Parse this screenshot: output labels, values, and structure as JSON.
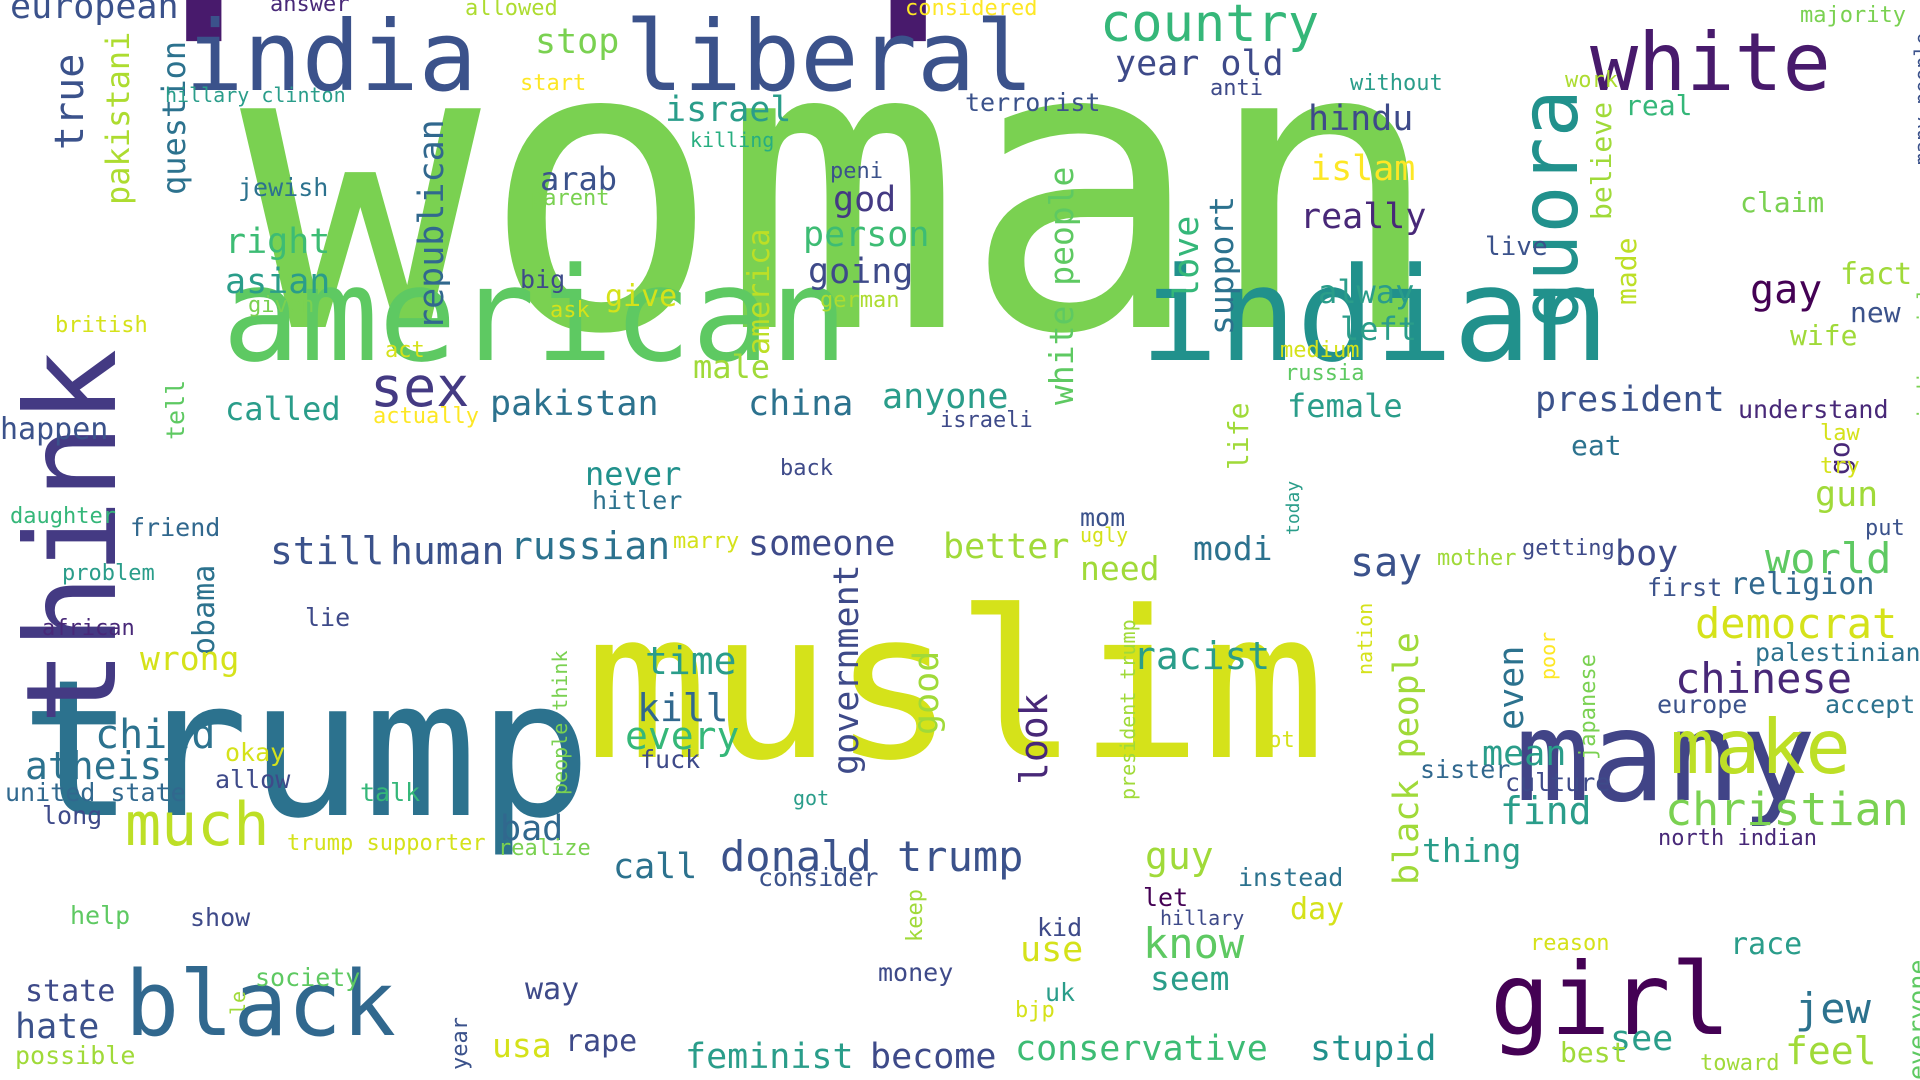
{
  "palette": [
    "#481a6c",
    "#3b528b",
    "#2c728e",
    "#21918c",
    "#28ae80",
    "#5ec962",
    "#addc30",
    "#d5e21a",
    "#fde725"
  ],
  "words": [
    {
      "text": "people",
      "color": "#481a6c"
    },
    {
      "text": "woman",
      "color": "#7ad151"
    },
    {
      "text": "muslim",
      "color": "#d5e21a"
    },
    {
      "text": "trump",
      "color": "#2c728e"
    },
    {
      "text": "american",
      "color": "#5ec962"
    },
    {
      "text": "indian",
      "color": "#21918c"
    },
    {
      "text": "many",
      "color": "#414487"
    },
    {
      "text": "black",
      "color": "#31688e"
    },
    {
      "text": "girl",
      "color": "#440154"
    },
    {
      "text": "think",
      "color": "#443a83"
    },
    {
      "text": "liberal",
      "color": "#3b528b"
    },
    {
      "text": "india",
      "color": "#3b528b"
    },
    {
      "text": "white",
      "color": "#481a6c"
    },
    {
      "text": "quora",
      "color": "#21918c"
    },
    {
      "text": "make",
      "color": "#bddf26"
    },
    {
      "text": "country",
      "color": "#35b779"
    },
    {
      "text": "much",
      "color": "#bddf26"
    },
    {
      "text": "sex",
      "color": "#443a83"
    },
    {
      "text": "christian",
      "color": "#7ad151"
    },
    {
      "text": "donald trump",
      "color": "#3b528b"
    },
    {
      "text": "feminist",
      "color": "#2a9d8a"
    },
    {
      "text": "become",
      "color": "#3e4a89"
    },
    {
      "text": "conservative",
      "color": "#3dbc74"
    },
    {
      "text": "stupid",
      "color": "#21918c"
    },
    {
      "text": "hate",
      "color": "#3b528b"
    },
    {
      "text": "jew",
      "color": "#2c728e"
    },
    {
      "text": "chinese",
      "color": "#482878"
    },
    {
      "text": "democrat",
      "color": "#d5e21a"
    },
    {
      "text": "world",
      "color": "#5ec962"
    },
    {
      "text": "republican",
      "color": "#31688e"
    },
    {
      "text": "year old",
      "color": "#3e4a89"
    },
    {
      "text": "hindu",
      "color": "#3e4a89"
    },
    {
      "text": "islam",
      "color": "#fde725"
    },
    {
      "text": "really",
      "color": "#482878"
    },
    {
      "text": "president",
      "color": "#3b528b"
    },
    {
      "text": "right",
      "color": "#3dbc74"
    },
    {
      "text": "asian",
      "color": "#2a9d8a"
    },
    {
      "text": "god",
      "color": "#443a83"
    },
    {
      "text": "person",
      "color": "#3dbc74"
    },
    {
      "text": "going",
      "color": "#3e4a89"
    },
    {
      "text": "give",
      "color": "#d5e21a"
    },
    {
      "text": "america",
      "color": "#bddf26"
    },
    {
      "text": "pakistan",
      "color": "#2c728e"
    },
    {
      "text": "china",
      "color": "#2c728e"
    },
    {
      "text": "anyone",
      "color": "#2a9d8a"
    },
    {
      "text": "called",
      "color": "#2a9d8a"
    },
    {
      "text": "male",
      "color": "#a0da39"
    },
    {
      "text": "female",
      "color": "#2a9d8a"
    },
    {
      "text": "alway",
      "color": "#2a9d8a"
    },
    {
      "text": "left",
      "color": "#2a9d8a"
    },
    {
      "text": "gay",
      "color": "#440154"
    },
    {
      "text": "fact",
      "color": "#a0da39"
    },
    {
      "text": "new",
      "color": "#3b528b"
    },
    {
      "text": "wife",
      "color": "#a0da39"
    },
    {
      "text": "claim",
      "color": "#7ad151"
    },
    {
      "text": "real",
      "color": "#35b779"
    },
    {
      "text": "believe",
      "color": "#a0da39"
    },
    {
      "text": "made",
      "color": "#bddf26"
    },
    {
      "text": "live",
      "color": "#3b528b"
    },
    {
      "text": "medium",
      "color": "#d5e21a"
    },
    {
      "text": "russia",
      "color": "#5ec962"
    },
    {
      "text": "israel",
      "color": "#2a9d8a"
    },
    {
      "text": "stop",
      "color": "#7ad151"
    },
    {
      "text": "arab",
      "color": "#3b528b"
    },
    {
      "text": "parent",
      "color": "#7ad151"
    },
    {
      "text": "jewish",
      "color": "#2c728e"
    },
    {
      "text": "true",
      "color": "#3b528b"
    },
    {
      "text": "pakistani",
      "color": "#addc30"
    },
    {
      "text": "question",
      "color": "#2c728e"
    },
    {
      "text": "european",
      "color": "#3b528b"
    },
    {
      "text": "answer",
      "color": "#482878"
    },
    {
      "text": "allowed",
      "color": "#addc30"
    },
    {
      "text": "considered",
      "color": "#fde725"
    },
    {
      "text": "start",
      "color": "#fde725"
    },
    {
      "text": "hillary clinton",
      "color": "#2a9d8a"
    },
    {
      "text": "killing",
      "color": "#28ae80"
    },
    {
      "text": "terrorist",
      "color": "#3b528b"
    },
    {
      "text": "anti",
      "color": "#3e4a89"
    },
    {
      "text": "without",
      "color": "#2a9d8a"
    },
    {
      "text": "work",
      "color": "#addc30"
    },
    {
      "text": "majority",
      "color": "#7ad151"
    },
    {
      "text": "many people",
      "color": "#3b528b"
    },
    {
      "text": "indian girl",
      "color": "#7ad151"
    },
    {
      "text": "peni",
      "color": "#3b528b"
    },
    {
      "text": "german",
      "color": "#addc30"
    },
    {
      "text": "big",
      "color": "#3e4a89"
    },
    {
      "text": "ask",
      "color": "#d5e21a"
    },
    {
      "text": "given",
      "color": "#7ad151"
    },
    {
      "text": "british",
      "color": "#d5e21a"
    },
    {
      "text": "act",
      "color": "#d5e21a"
    },
    {
      "text": "actually",
      "color": "#fde725"
    },
    {
      "text": "tell",
      "color": "#5ec962"
    },
    {
      "text": "happen",
      "color": "#3b528b"
    },
    {
      "text": "love",
      "color": "#35b779"
    },
    {
      "text": "support",
      "color": "#2c728e"
    },
    {
      "text": "life",
      "color": "#a0da39"
    },
    {
      "text": "white people",
      "color": "#5ec962"
    },
    {
      "text": "israeli",
      "color": "#3e4a89"
    },
    {
      "text": "understand",
      "color": "#482878"
    },
    {
      "text": "law",
      "color": "#d5e21a"
    },
    {
      "text": "go",
      "color": "#482878"
    },
    {
      "text": "eat",
      "color": "#2c728e"
    },
    {
      "text": "try",
      "color": "#d5e21a"
    },
    {
      "text": "gun",
      "color": "#a0da39"
    },
    {
      "text": "put",
      "color": "#3b528b"
    },
    {
      "text": "today",
      "color": "#2a9d8a"
    },
    {
      "text": "never",
      "color": "#21918c"
    },
    {
      "text": "back",
      "color": "#3e4a89"
    },
    {
      "text": "hitler",
      "color": "#2c728e"
    },
    {
      "text": "daughter",
      "color": "#35b779"
    },
    {
      "text": "friend",
      "color": "#31688e"
    },
    {
      "text": "problem",
      "color": "#2a9d8a"
    },
    {
      "text": "obama",
      "color": "#2c728e"
    },
    {
      "text": "african",
      "color": "#482878"
    },
    {
      "text": "lie",
      "color": "#3e4a89"
    },
    {
      "text": "wrong",
      "color": "#d5e21a"
    },
    {
      "text": "child",
      "color": "#2c728e"
    },
    {
      "text": "okay",
      "color": "#d5e21a"
    },
    {
      "text": "atheist",
      "color": "#2c728e"
    },
    {
      "text": "allow",
      "color": "#3e4a89"
    },
    {
      "text": "united state",
      "color": "#31688e"
    },
    {
      "text": "talk",
      "color": "#35b779"
    },
    {
      "text": "long",
      "color": "#3e4a89"
    },
    {
      "text": "still",
      "color": "#3b528b"
    },
    {
      "text": "human",
      "color": "#3b528b"
    },
    {
      "text": "russian",
      "color": "#2c728e"
    },
    {
      "text": "marry",
      "color": "#d5e21a"
    },
    {
      "text": "someone",
      "color": "#3e4a89"
    },
    {
      "text": "better",
      "color": "#a0da39"
    },
    {
      "text": "government",
      "color": "#3e4a89"
    },
    {
      "text": "mom",
      "color": "#3b528b"
    },
    {
      "text": "ugly",
      "color": "#d5e21a"
    },
    {
      "text": "need",
      "color": "#a0da39"
    },
    {
      "text": "modi",
      "color": "#2c728e"
    },
    {
      "text": "say",
      "color": "#3b528b"
    },
    {
      "text": "mother",
      "color": "#a0da39"
    },
    {
      "text": "getting",
      "color": "#3e4a89"
    },
    {
      "text": "boy",
      "color": "#3e4a89"
    },
    {
      "text": "first",
      "color": "#3b528b"
    },
    {
      "text": "religion",
      "color": "#31688e"
    },
    {
      "text": "time",
      "color": "#2a9d8a"
    },
    {
      "text": "kill",
      "color": "#31688e"
    },
    {
      "text": "every",
      "color": "#35b779"
    },
    {
      "text": "fuck",
      "color": "#3e4a89"
    },
    {
      "text": "good",
      "color": "#a0da39"
    },
    {
      "text": "look",
      "color": "#482878"
    },
    {
      "text": "racist",
      "color": "#2a9d8a"
    },
    {
      "text": "black people",
      "color": "#a0da39"
    },
    {
      "text": "nation",
      "color": "#d5e21a"
    },
    {
      "text": "even",
      "color": "#2c728e"
    },
    {
      "text": "poor",
      "color": "#fde725"
    },
    {
      "text": "japanese",
      "color": "#7ad151"
    },
    {
      "text": "palestinian",
      "color": "#2c728e"
    },
    {
      "text": "europe",
      "color": "#3b528b"
    },
    {
      "text": "accept",
      "color": "#2c728e"
    },
    {
      "text": "people think",
      "color": "#7ad151"
    },
    {
      "text": "president trump",
      "color": "#a0da39"
    },
    {
      "text": "lot",
      "color": "#d5e21a"
    },
    {
      "text": "mean",
      "color": "#2a9d8a"
    },
    {
      "text": "sister",
      "color": "#31688e"
    },
    {
      "text": "culture",
      "color": "#3e4a89"
    },
    {
      "text": "got",
      "color": "#2a9d8a"
    },
    {
      "text": "find",
      "color": "#2a9d8a"
    },
    {
      "text": "bad",
      "color": "#31688e"
    },
    {
      "text": "call",
      "color": "#2c728e"
    },
    {
      "text": "consider",
      "color": "#3b528b"
    },
    {
      "text": "trump supporter",
      "color": "#d5e21a"
    },
    {
      "text": "realize",
      "color": "#7ad151"
    },
    {
      "text": "guy",
      "color": "#a0da39"
    },
    {
      "text": "instead",
      "color": "#2c728e"
    },
    {
      "text": "thing",
      "color": "#2a9d8a"
    },
    {
      "text": "north indian",
      "color": "#482878"
    },
    {
      "text": "let",
      "color": "#440154"
    },
    {
      "text": "hillary",
      "color": "#3e4a89"
    },
    {
      "text": "day",
      "color": "#d5e21a"
    },
    {
      "text": "keep",
      "color": "#a0da39"
    },
    {
      "text": "use",
      "color": "#d5e21a"
    },
    {
      "text": "know",
      "color": "#5ec962"
    },
    {
      "text": "seem",
      "color": "#2a9d8a"
    },
    {
      "text": "kid",
      "color": "#3e4a89"
    },
    {
      "text": "money",
      "color": "#3e4a89"
    },
    {
      "text": "uk",
      "color": "#2a9d8a"
    },
    {
      "text": "bjp",
      "color": "#d5e21a"
    },
    {
      "text": "reason",
      "color": "#d5e21a"
    },
    {
      "text": "race",
      "color": "#2a9d8a"
    },
    {
      "text": "everyone",
      "color": "#5ec962"
    },
    {
      "text": "see",
      "color": "#2a9d8a"
    },
    {
      "text": "best",
      "color": "#a0da39"
    },
    {
      "text": "feel",
      "color": "#a0da39"
    },
    {
      "text": "toward",
      "color": "#a0da39"
    },
    {
      "text": "help",
      "color": "#5ec962"
    },
    {
      "text": "show",
      "color": "#3e4a89"
    },
    {
      "text": "state",
      "color": "#3e4a89"
    },
    {
      "text": "society",
      "color": "#5ec962"
    },
    {
      "text": "le",
      "color": "#a0da39"
    },
    {
      "text": "year",
      "color": "#3b528b"
    },
    {
      "text": "way",
      "color": "#3e4a89"
    },
    {
      "text": "usa",
      "color": "#d5e21a"
    },
    {
      "text": "rape",
      "color": "#3e4a89"
    },
    {
      "text": "possible",
      "color": "#a0da39"
    }
  ]
}
